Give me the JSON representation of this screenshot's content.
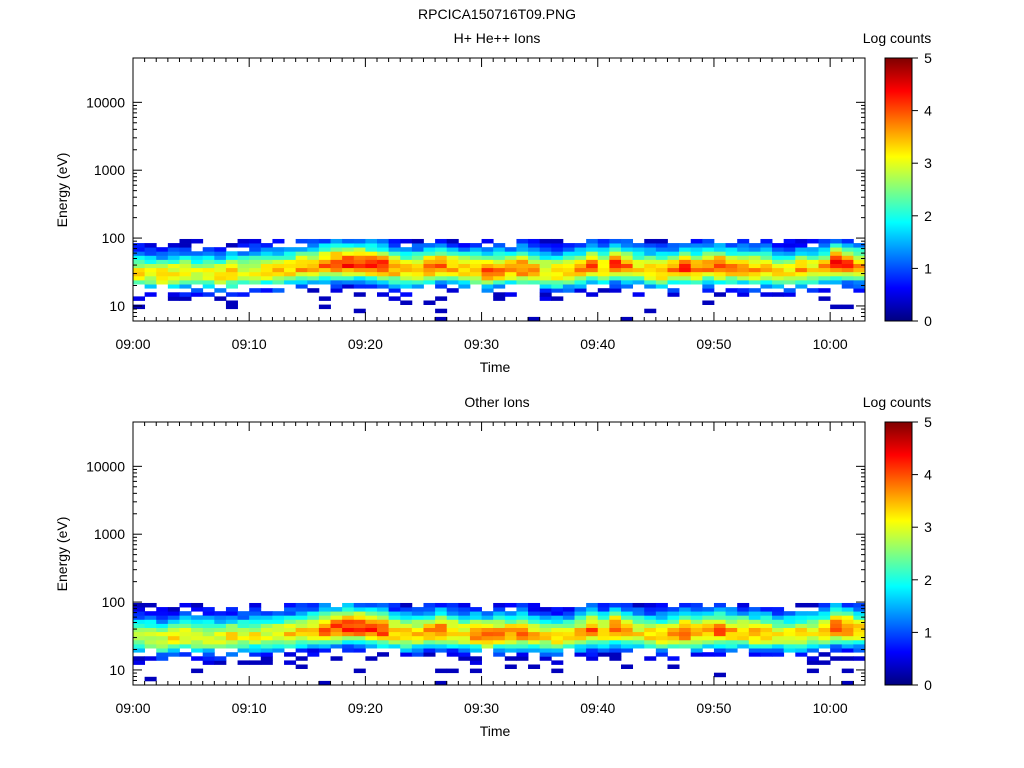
{
  "figure": {
    "title": "RPCICA150716T09.PNG"
  },
  "colormap": {
    "stops": [
      "#00007f",
      "#0000ff",
      "#0080ff",
      "#00ffff",
      "#80ff80",
      "#ffff00",
      "#ff8000",
      "#ff0000",
      "#7f0000"
    ]
  },
  "chart_data": [
    {
      "type": "heatmap",
      "title": "H+ He++ Ions",
      "xlabel": "Time",
      "ylabel": "Energy (eV)",
      "xlim": [
        "09:00",
        "10:03"
      ],
      "ylim": [
        6,
        45000
      ],
      "yscale": "log",
      "xticks": [
        "09:00",
        "09:10",
        "09:20",
        "09:30",
        "09:40",
        "09:50",
        "10:00"
      ],
      "yticks": [
        "10",
        "100",
        "1000",
        "10000"
      ],
      "colorbar": {
        "label": "Log counts",
        "range": [
          0,
          5
        ],
        "ticks": [
          "0",
          "1",
          "2",
          "3",
          "4",
          "5"
        ]
      },
      "time_bins_minutes": 63,
      "energy_range_eV": [
        6,
        97
      ],
      "band_peak_log_counts": [
        3.2,
        3.0,
        3.3,
        3.2,
        3.1,
        3.0,
        3.1,
        3.2,
        3.4,
        3.1,
        3.1,
        3.2,
        3.3,
        3.4,
        3.6,
        3.5,
        3.9,
        4.1,
        4.3,
        4.2,
        4.1,
        4.2,
        3.6,
        3.4,
        3.5,
        3.8,
        3.9,
        3.5,
        3.5,
        3.7,
        3.9,
        3.7,
        3.6,
        3.9,
        3.5,
        3.3,
        3.4,
        3.4,
        3.6,
        3.9,
        3.3,
        4.1,
        3.8,
        3.3,
        3.5,
        3.5,
        3.8,
        4.1,
        3.7,
        3.8,
        4.0,
        3.7,
        3.6,
        3.6,
        3.5,
        3.3,
        3.3,
        3.6,
        3.3,
        3.6,
        4.3,
        4.0,
        3.6
      ],
      "band_peak_energy_eV": [
        30,
        30,
        28,
        30,
        31,
        30,
        30,
        29,
        30,
        31,
        32,
        32,
        33,
        34,
        36,
        38,
        40,
        41,
        42,
        42,
        40,
        38,
        35,
        33,
        34,
        36,
        38,
        36,
        34,
        33,
        32,
        33,
        34,
        35,
        33,
        31,
        30,
        32,
        34,
        38,
        36,
        40,
        38,
        35,
        33,
        32,
        34,
        36,
        35,
        38,
        37,
        36,
        35,
        34,
        34,
        33,
        32,
        33,
        34,
        36,
        42,
        40,
        38
      ]
    },
    {
      "type": "heatmap",
      "title": "Other Ions",
      "xlabel": "Time",
      "ylabel": "Energy (eV)",
      "xlim": [
        "09:00",
        "10:03"
      ],
      "ylim": [
        6,
        45000
      ],
      "yscale": "log",
      "xticks": [
        "09:00",
        "09:10",
        "09:20",
        "09:30",
        "09:40",
        "09:50",
        "10:00"
      ],
      "yticks": [
        "10",
        "100",
        "1000",
        "10000"
      ],
      "colorbar": {
        "label": "Log counts",
        "range": [
          0,
          5
        ],
        "ticks": [
          "0",
          "1",
          "2",
          "3",
          "4",
          "5"
        ]
      },
      "time_bins_minutes": 63,
      "energy_range_eV": [
        6,
        97
      ],
      "band_peak_log_counts": [
        2.8,
        2.9,
        3.0,
        3.2,
        3.1,
        3.0,
        3.0,
        3.1,
        3.2,
        3.0,
        3.1,
        3.1,
        3.2,
        3.3,
        3.4,
        3.4,
        3.9,
        4.0,
        4.2,
        4.2,
        4.1,
        4.1,
        3.5,
        3.4,
        3.4,
        3.6,
        3.8,
        3.4,
        3.3,
        3.7,
        3.8,
        3.7,
        3.6,
        3.8,
        3.4,
        3.2,
        3.3,
        3.3,
        3.5,
        3.9,
        3.3,
        4.0,
        3.6,
        3.2,
        3.4,
        3.3,
        3.6,
        4.0,
        3.6,
        3.7,
        3.9,
        3.6,
        3.5,
        3.5,
        3.4,
        3.1,
        3.2,
        3.4,
        3.2,
        3.5,
        4.2,
        3.9,
        3.5
      ],
      "band_peak_energy_eV": [
        30,
        30,
        28,
        30,
        31,
        30,
        30,
        29,
        30,
        31,
        32,
        32,
        33,
        34,
        36,
        38,
        40,
        41,
        42,
        42,
        40,
        38,
        35,
        33,
        34,
        36,
        38,
        36,
        34,
        33,
        32,
        33,
        34,
        35,
        33,
        31,
        30,
        32,
        34,
        38,
        36,
        40,
        38,
        35,
        33,
        32,
        34,
        36,
        35,
        38,
        37,
        36,
        35,
        34,
        34,
        33,
        32,
        33,
        34,
        36,
        42,
        40,
        38
      ]
    }
  ]
}
